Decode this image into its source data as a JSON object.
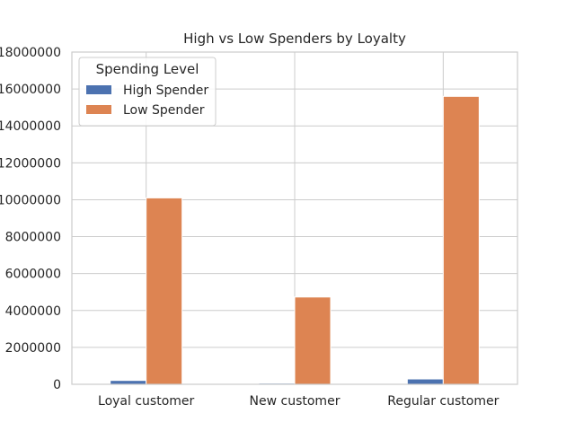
{
  "chart_data": {
    "type": "bar",
    "title": "High vs Low Spenders by Loyalty",
    "xlabel": "",
    "ylabel": "",
    "categories": [
      "Loyal customer",
      "New customer",
      "Regular customer"
    ],
    "series": [
      {
        "name": "High Spender",
        "values": [
          210000,
          60000,
          290000
        ],
        "color": "#4c72b0"
      },
      {
        "name": "Low Spender",
        "values": [
          10100000,
          4730000,
          15600000
        ],
        "color": "#dd8452"
      }
    ],
    "ylim": [
      0,
      18000000
    ],
    "yticks": [
      0,
      2000000,
      4000000,
      6000000,
      8000000,
      10000000,
      12000000,
      14000000,
      16000000,
      18000000
    ],
    "ytick_labels": [
      "0",
      "2000000",
      "4000000",
      "6000000",
      "8000000",
      "10000000",
      "12000000",
      "14000000",
      "16000000",
      "18000000"
    ],
    "legend": {
      "title": "Spending Level",
      "placement": "top-left"
    },
    "grid": true
  }
}
